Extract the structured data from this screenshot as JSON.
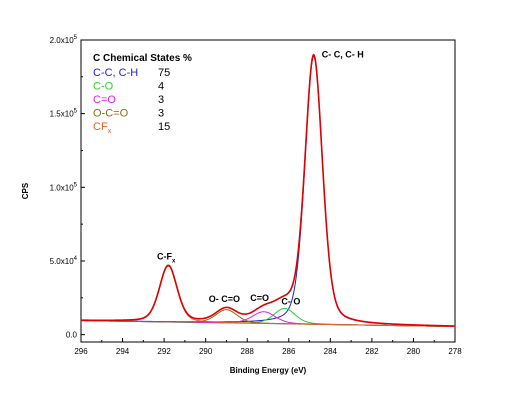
{
  "chart_data": {
    "type": "line",
    "title": "",
    "xlabel": "Binding Energy (eV)",
    "ylabel": "CPS",
    "xlim": [
      296,
      278
    ],
    "ylim": [
      -5000,
      200000
    ],
    "x_reversed": true,
    "x_ticks": [
      296,
      294,
      292,
      290,
      288,
      286,
      284,
      282,
      280,
      278
    ],
    "x_tick_labels": [
      "296",
      "294",
      "292",
      "290",
      "288",
      "286",
      "284",
      "282",
      "280",
      "278"
    ],
    "y_ticks": [
      0,
      50000,
      100000,
      150000,
      200000
    ],
    "y_tick_labels": [
      {
        "mant": "0.0",
        "exp": ""
      },
      {
        "mant": "5.0x10",
        "exp": "4"
      },
      {
        "mant": "1.0x10",
        "exp": "5"
      },
      {
        "mant": "1.5x10",
        "exp": "5"
      },
      {
        "mant": "2.0x10",
        "exp": "5"
      }
    ],
    "grid": false,
    "legend_placement": "top-left",
    "legend": {
      "title": "C Chemical States %",
      "entries": [
        {
          "label": "C-C, C-H",
          "value": "75",
          "color": "#1f1fd0"
        },
        {
          "label": "C-O",
          "value": "4",
          "color": "#2ecc2e"
        },
        {
          "label": "C=O",
          "value": "3",
          "color": "#e020e0"
        },
        {
          "label": "O-C=O",
          "value": "3",
          "color": "#8b6a10"
        },
        {
          "label": "CF",
          "sub": "x",
          "value": "15",
          "color": "#e06020"
        }
      ]
    },
    "annotations": [
      {
        "text": "C- C, C- H",
        "x": 283.4,
        "y": 188000
      },
      {
        "text": "C-F",
        "sub": "x",
        "x": 291.9,
        "y": 51000
      },
      {
        "text": "O- C=O",
        "x": 289.1,
        "y": 22000
      },
      {
        "text": "C=O",
        "x": 287.4,
        "y": 23000
      },
      {
        "text": "C- O",
        "x": 285.9,
        "y": 20500
      }
    ],
    "background": {
      "color": "#20b0b0",
      "y_at_296": 9500,
      "y_at_278": 5500
    },
    "series": [
      {
        "name": "C-C, C-H",
        "color": "#1f1fd0",
        "center": 284.8,
        "height": 182000,
        "fwhm": 1.0
      },
      {
        "name": "C-O",
        "color": "#2ecc2e",
        "center": 286.2,
        "height": 10500,
        "fwhm": 1.2
      },
      {
        "name": "C=O",
        "color": "#e020e0",
        "center": 287.2,
        "height": 8000,
        "fwhm": 1.3
      },
      {
        "name": "O-C=O",
        "color": "#8b6a10",
        "center": 289.0,
        "height": 9000,
        "fwhm": 1.2
      },
      {
        "name": "CFx",
        "color": "#e06020",
        "center": 291.8,
        "height": 38000,
        "fwhm": 1.0
      }
    ],
    "envelope": {
      "name": "Envelope",
      "color": "#dd0000"
    }
  }
}
